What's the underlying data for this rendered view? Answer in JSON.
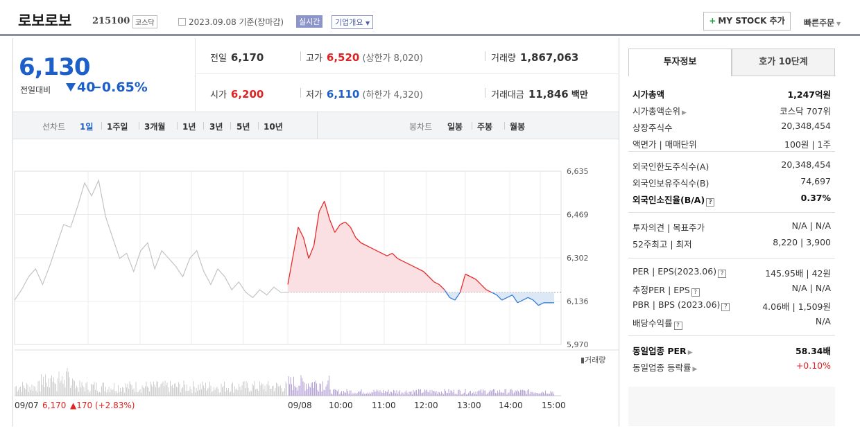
{
  "header": {
    "stock_name": "로보로보",
    "stock_code": "215100",
    "market": "코스닥",
    "date_text": "2023.09.08 기준(장마감)",
    "realtime_label": "실시간",
    "company_overview_label": "기업개요",
    "my_stock_button": "MY STOCK 추가",
    "quick_order": "빠른주문"
  },
  "price": {
    "current": "6,130",
    "compare_label": "전일대비",
    "change": "40",
    "change_pct": "−0.65%"
  },
  "stats": {
    "prev_close_label": "전일",
    "prev_close": "6,170",
    "high_label": "고가",
    "high": "6,520",
    "upper_limit_label": "(상한가",
    "upper_limit": "8,020)",
    "volume_label": "거래량",
    "volume": "1,867,063",
    "open_label": "시가",
    "open": "6,200",
    "low_label": "저가",
    "low": "6,110",
    "lower_limit_label": "(하한가",
    "lower_limit": "4,320)",
    "value_label": "거래대금",
    "value": "11,846",
    "value_unit": "백만"
  },
  "toolbar": {
    "line_chart_label": "선차트",
    "periods": [
      "1일",
      "1주일",
      "3개월",
      "1년",
      "3년",
      "5년",
      "10년"
    ],
    "candle_label": "봉차트",
    "candle_periods": [
      "일봉",
      "주봉",
      "월봉"
    ]
  },
  "chart_data": {
    "type": "line",
    "y_ticks": [
      "6,635",
      "6,469",
      "6,302",
      "6,136",
      "5,970"
    ],
    "ylim": [
      5970,
      6635
    ],
    "x_ticks": [
      "09/07",
      "09/08",
      "10:00",
      "11:00",
      "12:00",
      "13:00",
      "14:00",
      "15:00"
    ],
    "prev_close": 6170,
    "volume_legend": "거래량",
    "prev_day_summary": {
      "date": "09/07",
      "close": "6,170",
      "change": "170",
      "change_pct": "(+2.83%)"
    },
    "prev_day_series": [
      6140,
      6180,
      6230,
      6260,
      6200,
      6270,
      6350,
      6430,
      6420,
      6500,
      6590,
      6540,
      6600,
      6460,
      6380,
      6300,
      6320,
      6250,
      6330,
      6360,
      6260,
      6330,
      6300,
      6270,
      6230,
      6300,
      6330,
      6250,
      6200,
      6260,
      6230,
      6180,
      6210,
      6170,
      6150,
      6180,
      6160,
      6190,
      6170,
      6170
    ],
    "today_series": [
      6200,
      6310,
      6420,
      6380,
      6300,
      6350,
      6480,
      6520,
      6450,
      6400,
      6430,
      6440,
      6420,
      6380,
      6360,
      6350,
      6340,
      6330,
      6320,
      6310,
      6320,
      6300,
      6290,
      6280,
      6270,
      6260,
      6250,
      6230,
      6210,
      6200,
      6180,
      6150,
      6140,
      6170,
      6240,
      6230,
      6220,
      6200,
      6180,
      6170,
      6160,
      6140,
      6150,
      6160,
      6130,
      6140,
      6150,
      6140,
      6120,
      6130,
      6130,
      6130
    ]
  },
  "tabs": {
    "invest_info": "투자정보",
    "order_book": "호가 10단계"
  },
  "invest_info": {
    "rows": [
      {
        "k": "시가총액",
        "v": "1,247억원",
        "bold": true
      },
      {
        "k": "시가총액순위",
        "v": "코스닥 707위",
        "arrow": true
      },
      {
        "k": "상장주식수",
        "v": "20,348,454"
      },
      {
        "k": "액면가 | 매매단위",
        "v": "100원 | 1주"
      },
      {
        "k": "외국인한도주식수(A)",
        "v": "20,348,454"
      },
      {
        "k": "외국인보유주식수(B)",
        "v": "74,697"
      },
      {
        "k": "외국인소진율(B/A)",
        "v": "0.37%",
        "bold": true,
        "q": true
      },
      {
        "k": "투자의견 | 목표주가",
        "v": "N/A | N/A"
      },
      {
        "k": "52주최고 | 최저",
        "v": "8,220 | 3,900"
      },
      {
        "k": "PER | EPS(2023.06)",
        "v": "145.95배 | 42원",
        "q": true
      },
      {
        "k": "추정PER | EPS",
        "v": "N/A | N/A",
        "q": true
      },
      {
        "k": "PBR | BPS (2023.06)",
        "v": "4.06배 | 1,509원",
        "q": true
      },
      {
        "k": "배당수익률",
        "v": "N/A",
        "q": true
      },
      {
        "k": "동일업종 PER",
        "v": "58.34배",
        "bold": true,
        "arrow": true
      },
      {
        "k": "동일업종 등락률",
        "v": "+0.10%",
        "arrow": true,
        "red": true
      }
    ]
  }
}
